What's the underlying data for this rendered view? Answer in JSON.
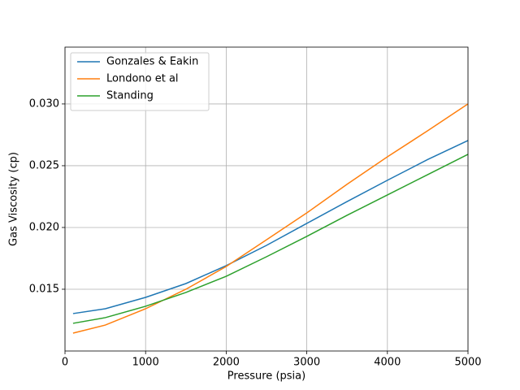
{
  "chart_data": {
    "type": "line",
    "xlabel": "Pressure (psia)",
    "ylabel": "Gas Viscosity (cp)",
    "x": [
      100,
      500,
      1000,
      1500,
      2000,
      2500,
      3000,
      3500,
      4000,
      4500,
      5000
    ],
    "series": [
      {
        "name": "Gonzales & Eakin",
        "color": "#1f77b4",
        "values": [
          0.01303,
          0.01342,
          0.01434,
          0.01546,
          0.01691,
          0.01855,
          0.02033,
          0.0221,
          0.02382,
          0.0255,
          0.02704
        ]
      },
      {
        "name": "Londono et al",
        "color": "#ff7f0e",
        "values": [
          0.01145,
          0.0121,
          0.01342,
          0.015,
          0.01684,
          0.019,
          0.02118,
          0.0235,
          0.02572,
          0.02783,
          0.03
        ]
      },
      {
        "name": "Standing",
        "color": "#2ca02c",
        "values": [
          0.01224,
          0.0127,
          0.01362,
          0.01474,
          0.01605,
          0.01763,
          0.01928,
          0.02099,
          0.02263,
          0.02428,
          0.02592
        ]
      }
    ],
    "xlim": [
      0,
      5000
    ],
    "ylim": [
      0.01,
      0.0346
    ],
    "xticks": [
      0,
      1000,
      2000,
      3000,
      4000,
      5000
    ],
    "yticks": [
      0.015,
      {
        "value": 0.02,
        "label": "0.020"
      },
      0.025,
      {
        "value": 0.03,
        "label": "0.030"
      }
    ],
    "grid": true,
    "legend": "upper left"
  }
}
